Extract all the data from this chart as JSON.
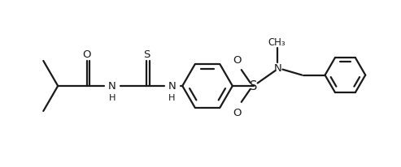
{
  "bg_color": "#ffffff",
  "line_color": "#1a1a1a",
  "line_width": 1.6,
  "font_size": 9.5,
  "fig_width": 4.93,
  "fig_height": 2.07,
  "dpi": 100,
  "xlim": [
    0,
    9.86
  ],
  "ylim": [
    0,
    4.14
  ]
}
